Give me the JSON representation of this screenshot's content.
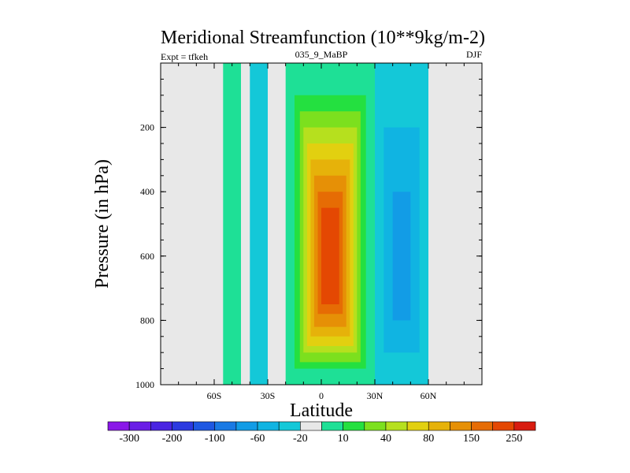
{
  "chart_data": {
    "type": "heatmap",
    "title": "Meridional Streamfunction (10**9kg/m-2)",
    "subtitle_left": "Expt = tfkeh",
    "subtitle_center": "035_9_MaBP",
    "subtitle_right": "DJF",
    "xlabel": "Latitude",
    "ylabel": "Pressure (in hPa)",
    "xlim": [
      -90,
      90
    ],
    "ylim": [
      1000,
      0
    ],
    "xticks": [
      {
        "value": -60,
        "label": "60S"
      },
      {
        "value": -30,
        "label": "30S"
      },
      {
        "value": 0,
        "label": "0"
      },
      {
        "value": 30,
        "label": "30N"
      },
      {
        "value": 60,
        "label": "60N"
      }
    ],
    "yticks": [
      {
        "value": 200,
        "label": "200"
      },
      {
        "value": 400,
        "label": "400"
      },
      {
        "value": 600,
        "label": "600"
      },
      {
        "value": 800,
        "label": "800"
      },
      {
        "value": 1000,
        "label": "1000"
      }
    ],
    "background_color": "#e8e8e8",
    "colorbar": {
      "colors": [
        "#8a18e8",
        "#6a1ee6",
        "#4a24e2",
        "#2c3ae0",
        "#1e58e2",
        "#1a7ae4",
        "#129ce6",
        "#10b4e2",
        "#14c8d8",
        "#e8e8e8",
        "#1ee096",
        "#24e040",
        "#7ce01e",
        "#b6e01e",
        "#e2d010",
        "#e6b20a",
        "#e69006",
        "#e66c04",
        "#e44802",
        "#d81c10"
      ],
      "labels": [
        {
          "after_box": 1,
          "text": "-300"
        },
        {
          "after_box": 3,
          "text": "-200"
        },
        {
          "after_box": 5,
          "text": "-100"
        },
        {
          "after_box": 7,
          "text": "-60"
        },
        {
          "after_box": 9,
          "text": "-20"
        },
        {
          "after_box": 11,
          "text": "10"
        },
        {
          "after_box": 13,
          "text": "40"
        },
        {
          "after_box": 15,
          "text": "80"
        },
        {
          "after_box": 17,
          "text": "150"
        },
        {
          "after_box": 19,
          "text": "250"
        }
      ]
    },
    "regions": [
      {
        "name": "sh-positive-column",
        "sign": "positive",
        "color": "#1ee096",
        "points": [
          [
            -55,
            1
          ],
          [
            -50,
            1
          ],
          [
            -45,
            1
          ],
          [
            -45,
            1000
          ],
          [
            -55,
            1000
          ]
        ]
      },
      {
        "name": "south-negative-patch",
        "sign": "negative",
        "color": "#14c8d8",
        "points": [
          [
            -40,
            1
          ],
          [
            -30,
            1
          ],
          [
            -30,
            1000
          ],
          [
            -40,
            1000
          ]
        ]
      },
      {
        "name": "nh-negative-cell-outer",
        "sign": "negative",
        "color": "#14c8d8",
        "points": [
          [
            30,
            1
          ],
          [
            60,
            1
          ],
          [
            60,
            1000
          ],
          [
            30,
            1000
          ]
        ]
      },
      {
        "name": "nh-negative-cell-inner",
        "sign": "negative",
        "color": "#10b4e2",
        "points": [
          [
            35,
            200
          ],
          [
            55,
            200
          ],
          [
            55,
            900
          ],
          [
            35,
            900
          ]
        ]
      },
      {
        "name": "nh-negative-cell-core",
        "sign": "negative",
        "color": "#129ce6",
        "points": [
          [
            40,
            400
          ],
          [
            50,
            400
          ],
          [
            50,
            800
          ],
          [
            40,
            800
          ]
        ]
      },
      {
        "name": "hadley-cell-1",
        "sign": "positive",
        "color": "#1ee096",
        "points": [
          [
            -20,
            1
          ],
          [
            30,
            1
          ],
          [
            30,
            1000
          ],
          [
            -20,
            1000
          ]
        ]
      },
      {
        "name": "hadley-cell-2",
        "sign": "positive",
        "color": "#24e040",
        "points": [
          [
            -15,
            100
          ],
          [
            25,
            100
          ],
          [
            25,
            950
          ],
          [
            -15,
            950
          ]
        ]
      },
      {
        "name": "hadley-cell-3",
        "sign": "positive",
        "color": "#7ce01e",
        "points": [
          [
            -12,
            150
          ],
          [
            22,
            150
          ],
          [
            22,
            930
          ],
          [
            -12,
            930
          ]
        ]
      },
      {
        "name": "hadley-cell-4",
        "sign": "positive",
        "color": "#b6e01e",
        "points": [
          [
            -10,
            200
          ],
          [
            20,
            200
          ],
          [
            20,
            900
          ],
          [
            -10,
            900
          ]
        ]
      },
      {
        "name": "hadley-cell-5",
        "sign": "positive",
        "color": "#e2d010",
        "points": [
          [
            -8,
            250
          ],
          [
            18,
            250
          ],
          [
            18,
            880
          ],
          [
            -8,
            880
          ]
        ]
      },
      {
        "name": "hadley-cell-6",
        "sign": "positive",
        "color": "#e6b20a",
        "points": [
          [
            -6,
            300
          ],
          [
            16,
            300
          ],
          [
            16,
            850
          ],
          [
            -6,
            850
          ]
        ]
      },
      {
        "name": "hadley-cell-7",
        "sign": "positive",
        "color": "#e69006",
        "points": [
          [
            -4,
            350
          ],
          [
            14,
            350
          ],
          [
            14,
            820
          ],
          [
            -4,
            820
          ]
        ]
      },
      {
        "name": "hadley-cell-8",
        "sign": "positive",
        "color": "#e66c04",
        "points": [
          [
            -2,
            400
          ],
          [
            12,
            400
          ],
          [
            12,
            780
          ],
          [
            -2,
            780
          ]
        ]
      },
      {
        "name": "hadley-cell-core",
        "sign": "positive",
        "color": "#e44802",
        "points": [
          [
            0,
            450
          ],
          [
            10,
            450
          ],
          [
            10,
            750
          ],
          [
            0,
            750
          ]
        ]
      }
    ]
  }
}
